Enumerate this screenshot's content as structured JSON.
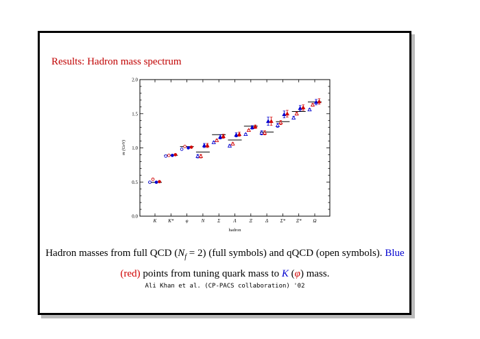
{
  "slide": {
    "title": "Results: Hadron mass spectrum",
    "caption_parts": {
      "p1": "Hadron masses from full QCD (",
      "nf_symbol": "N",
      "nf_sub": "f",
      "nf_value": " = 2)",
      "p2": " (full symbols) and qQCD (open symbols). ",
      "blue_text": "Blue",
      "red_text": "(red)",
      "p3": " points from tuning quark mass to ",
      "k_symbol": "K",
      "p4": " (",
      "phi_symbol": "φ",
      "p5": ") mass."
    },
    "credit": "Ali Khan et al. (CP-PACS collaboration) '02"
  },
  "colors": {
    "blue": "#0000d0",
    "red": "#d00000",
    "title": "#c00000"
  },
  "chart_data": {
    "type": "scatter",
    "xlabel": "hadron",
    "ylabel": "m (GeV)",
    "ylim": [
      0.0,
      2.0
    ],
    "yticks": [
      "0.0",
      "0.5",
      "1.0",
      "1.5",
      "2.0"
    ],
    "categories": [
      "K",
      "K*",
      "φ",
      "N",
      "Σ",
      "Λ",
      "Ξ",
      "Δ",
      "Σ*",
      "Ξ*",
      "Ω"
    ],
    "experiment": [
      0.495,
      0.892,
      1.019,
      0.939,
      1.193,
      1.116,
      1.318,
      1.232,
      1.385,
      1.533,
      1.672
    ],
    "points": {
      "K": [
        {
          "series": "qQCD-K",
          "color": "blue",
          "shape": "circle",
          "filled": false,
          "y": 0.497,
          "err": 0.004
        },
        {
          "series": "qQCD-phi",
          "color": "red",
          "shape": "circle",
          "filled": false,
          "y": 0.54,
          "err": 0.005
        },
        {
          "series": "full-K",
          "color": "blue",
          "shape": "circle",
          "filled": true,
          "y": 0.497,
          "err": 0.004
        },
        {
          "series": "full-phi",
          "color": "red",
          "shape": "circle",
          "filled": true,
          "y": 0.505,
          "err": 0.005
        }
      ],
      "K*": [
        {
          "series": "qQCD-K",
          "color": "blue",
          "shape": "circle",
          "filled": false,
          "y": 0.88,
          "err": 0.006
        },
        {
          "series": "qQCD-phi",
          "color": "red",
          "shape": "circle",
          "filled": false,
          "y": 0.89,
          "err": 0.006
        },
        {
          "series": "full-K",
          "color": "blue",
          "shape": "circle",
          "filled": true,
          "y": 0.89,
          "err": 0.008
        },
        {
          "series": "full-phi",
          "color": "red",
          "shape": "circle",
          "filled": true,
          "y": 0.9,
          "err": 0.008
        }
      ],
      "φ": [
        {
          "series": "qQCD-K",
          "color": "blue",
          "shape": "circle",
          "filled": false,
          "y": 0.98,
          "err": 0.01
        },
        {
          "series": "qQCD-phi",
          "color": "red",
          "shape": "circle",
          "filled": false,
          "y": 1.02,
          "err": 0.006
        },
        {
          "series": "full-K",
          "color": "blue",
          "shape": "circle",
          "filled": true,
          "y": 1.0,
          "err": 0.01
        },
        {
          "series": "full-phi",
          "color": "red",
          "shape": "circle",
          "filled": true,
          "y": 1.01,
          "err": 0.006
        }
      ],
      "N": [
        {
          "series": "qQCD-K",
          "color": "blue",
          "shape": "triangle",
          "filled": false,
          "y": 0.878,
          "err": 0.025
        },
        {
          "series": "qQCD-phi",
          "color": "red",
          "shape": "triangle",
          "filled": false,
          "y": 0.878,
          "err": 0.025
        },
        {
          "series": "full-K",
          "color": "blue",
          "shape": "triangle",
          "filled": true,
          "y": 1.035,
          "err": 0.03
        },
        {
          "series": "full-phi",
          "color": "red",
          "shape": "triangle",
          "filled": true,
          "y": 1.035,
          "err": 0.03
        }
      ],
      "Σ": [
        {
          "series": "qQCD-K",
          "color": "blue",
          "shape": "triangle",
          "filled": false,
          "y": 1.08,
          "err": 0.015
        },
        {
          "series": "qQCD-phi",
          "color": "red",
          "shape": "triangle",
          "filled": false,
          "y": 1.11,
          "err": 0.015
        },
        {
          "series": "full-K",
          "color": "blue",
          "shape": "triangle",
          "filled": true,
          "y": 1.16,
          "err": 0.03
        },
        {
          "series": "full-phi",
          "color": "red",
          "shape": "triangle",
          "filled": true,
          "y": 1.17,
          "err": 0.03
        }
      ],
      "Λ": [
        {
          "series": "qQCD-K",
          "color": "blue",
          "shape": "triangle",
          "filled": false,
          "y": 1.03,
          "err": 0.015
        },
        {
          "series": "qQCD-phi",
          "color": "red",
          "shape": "triangle",
          "filled": false,
          "y": 1.06,
          "err": 0.015
        },
        {
          "series": "full-K",
          "color": "blue",
          "shape": "triangle",
          "filled": true,
          "y": 1.19,
          "err": 0.03
        },
        {
          "series": "full-phi",
          "color": "red",
          "shape": "triangle",
          "filled": true,
          "y": 1.2,
          "err": 0.03
        }
      ],
      "Ξ": [
        {
          "series": "qQCD-K",
          "color": "blue",
          "shape": "triangle",
          "filled": false,
          "y": 1.2,
          "err": 0.012
        },
        {
          "series": "qQCD-phi",
          "color": "red",
          "shape": "triangle",
          "filled": false,
          "y": 1.26,
          "err": 0.012
        },
        {
          "series": "full-K",
          "color": "blue",
          "shape": "triangle",
          "filled": true,
          "y": 1.3,
          "err": 0.025
        },
        {
          "series": "full-phi",
          "color": "red",
          "shape": "triangle",
          "filled": true,
          "y": 1.31,
          "err": 0.025
        }
      ],
      "Δ": [
        {
          "series": "qQCD-K",
          "color": "blue",
          "shape": "triangle",
          "filled": false,
          "y": 1.22,
          "err": 0.03
        },
        {
          "series": "qQCD-phi",
          "color": "red",
          "shape": "triangle",
          "filled": false,
          "y": 1.22,
          "err": 0.03
        },
        {
          "series": "full-K",
          "color": "blue",
          "shape": "triangle",
          "filled": true,
          "y": 1.39,
          "err": 0.06
        },
        {
          "series": "full-phi",
          "color": "red",
          "shape": "triangle",
          "filled": true,
          "y": 1.39,
          "err": 0.06
        }
      ],
      "Σ*": [
        {
          "series": "qQCD-K",
          "color": "blue",
          "shape": "triangle",
          "filled": false,
          "y": 1.33,
          "err": 0.03
        },
        {
          "series": "qQCD-phi",
          "color": "red",
          "shape": "triangle",
          "filled": false,
          "y": 1.37,
          "err": 0.03
        },
        {
          "series": "full-K",
          "color": "blue",
          "shape": "triangle",
          "filled": true,
          "y": 1.49,
          "err": 0.05
        },
        {
          "series": "full-phi",
          "color": "red",
          "shape": "triangle",
          "filled": true,
          "y": 1.5,
          "err": 0.05
        }
      ],
      "Ξ*": [
        {
          "series": "qQCD-K",
          "color": "blue",
          "shape": "triangle",
          "filled": false,
          "y": 1.44,
          "err": 0.02
        },
        {
          "series": "qQCD-phi",
          "color": "red",
          "shape": "triangle",
          "filled": false,
          "y": 1.5,
          "err": 0.02
        },
        {
          "series": "full-K",
          "color": "blue",
          "shape": "triangle",
          "filled": true,
          "y": 1.58,
          "err": 0.04
        },
        {
          "series": "full-phi",
          "color": "red",
          "shape": "triangle",
          "filled": true,
          "y": 1.59,
          "err": 0.04
        }
      ],
      "Ω": [
        {
          "series": "qQCD-K",
          "color": "blue",
          "shape": "triangle",
          "filled": false,
          "y": 1.56,
          "err": 0.015
        },
        {
          "series": "qQCD-phi",
          "color": "red",
          "shape": "triangle",
          "filled": false,
          "y": 1.63,
          "err": 0.02
        },
        {
          "series": "full-K",
          "color": "blue",
          "shape": "triangle",
          "filled": true,
          "y": 1.67,
          "err": 0.04
        },
        {
          "series": "full-phi",
          "color": "red",
          "shape": "triangle",
          "filled": true,
          "y": 1.68,
          "err": 0.04
        }
      ]
    }
  }
}
